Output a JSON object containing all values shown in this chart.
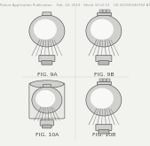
{
  "bg_color": "#f2f2ee",
  "header_text": "Patent Application Publication    Feb. 14, 2019   Sheet 10 of 13    US 2019/0046782 A1",
  "header_fontsize": 2.8,
  "header_color": "#999999",
  "fig_labels": [
    "FIG. 9A",
    "FIG. 9B",
    "FIG. 10A",
    "FIG. 10B"
  ],
  "fig_label_fontsize": 4.5,
  "fig_label_color": "#444444",
  "line_color": "#555555",
  "fill_light": "#e8e8e4",
  "fill_mid": "#d0d0cc",
  "fill_dark": "#b8b8b4",
  "fill_white": "#f8f8f6",
  "wire_color": "#666666",
  "wire_color2": "#888888"
}
